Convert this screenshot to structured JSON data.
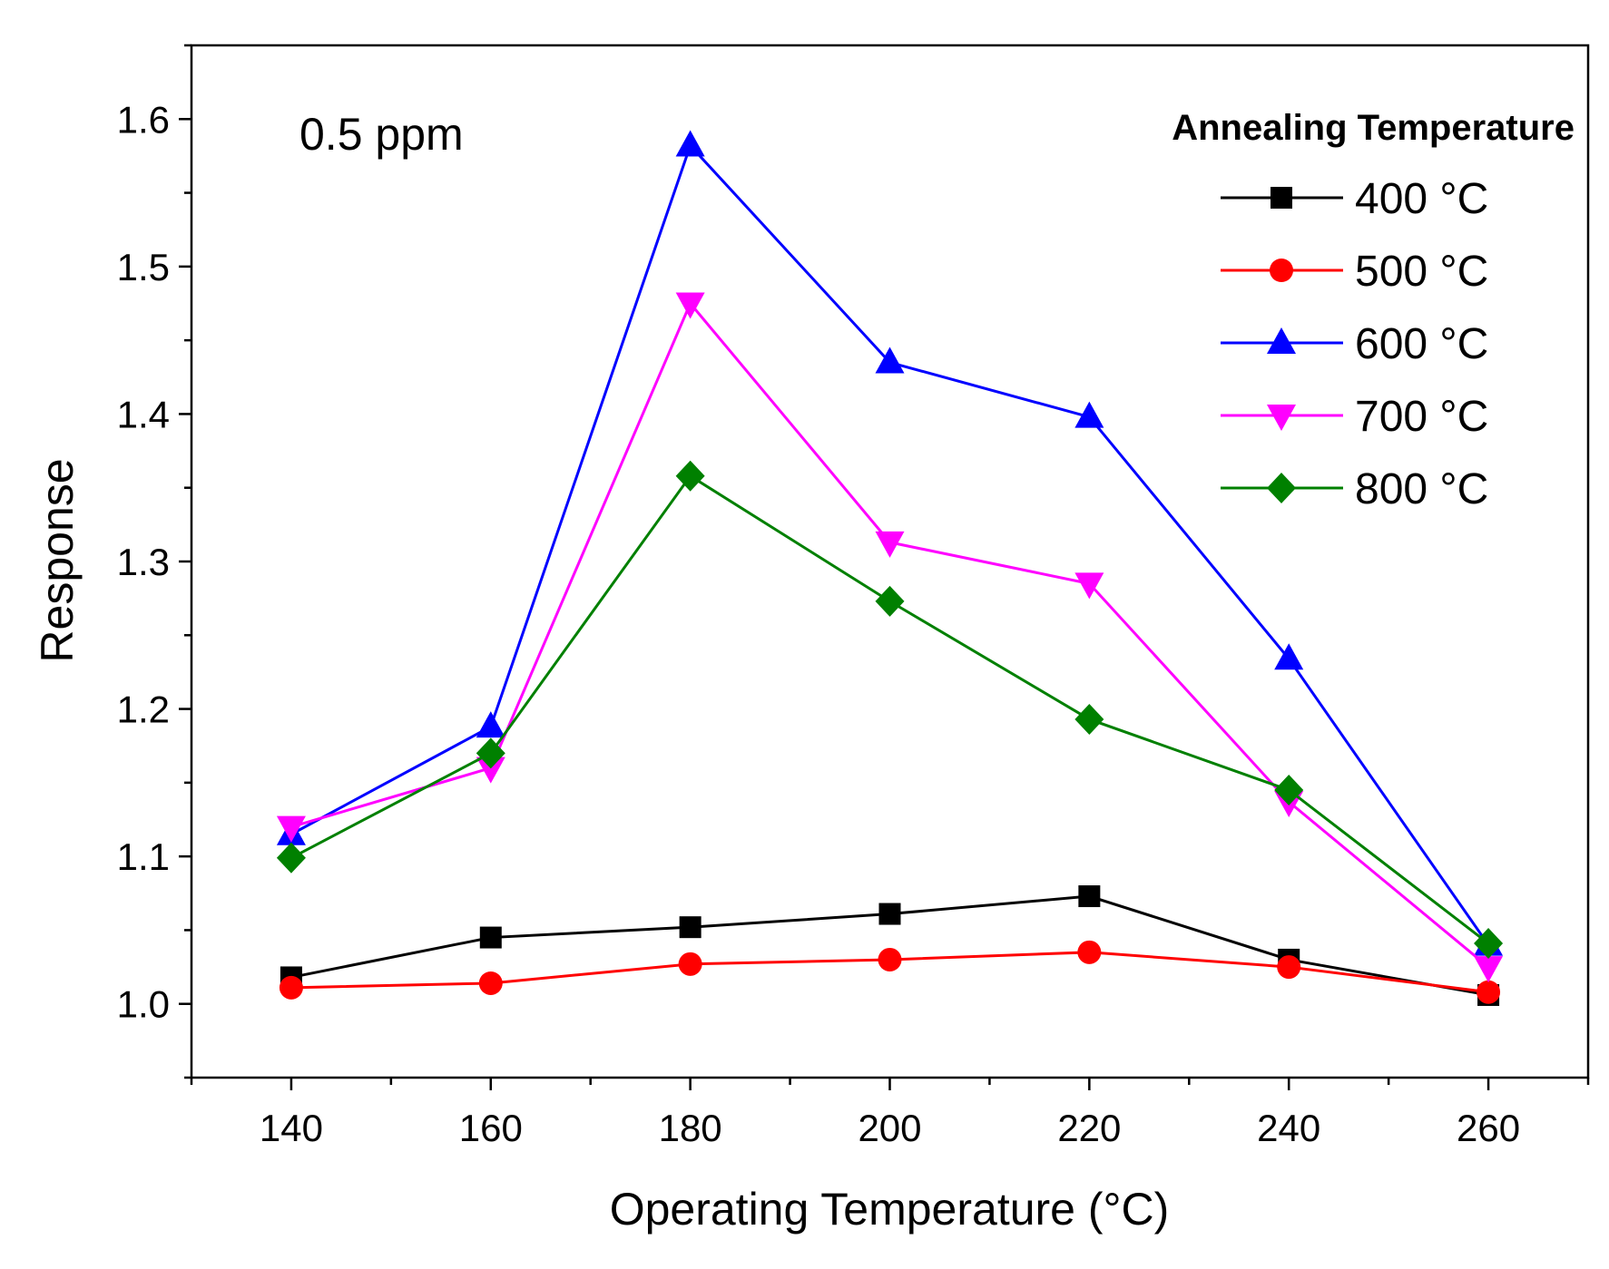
{
  "chart_data": {
    "type": "line",
    "title": "",
    "annotation": "0.5 ppm",
    "xlabel": "Operating Temperature (°C)",
    "ylabel": "Response",
    "xlim": [
      130,
      270
    ],
    "ylim": [
      0.95,
      1.65
    ],
    "x_ticks": [
      140,
      160,
      180,
      200,
      220,
      240,
      260
    ],
    "x_minor_ticks": [
      130,
      150,
      170,
      190,
      210,
      230,
      250,
      270
    ],
    "y_ticks": [
      1.0,
      1.1,
      1.2,
      1.3,
      1.4,
      1.5,
      1.6
    ],
    "x_tick_labels": [
      "140",
      "160",
      "180",
      "200",
      "220",
      "240",
      "260"
    ],
    "y_tick_labels": [
      "1.0",
      "1.1",
      "1.2",
      "1.3",
      "1.4",
      "1.5",
      "1.6"
    ],
    "legend_title": "Annealing Temperature",
    "legend_position": "top-right",
    "grid": false,
    "x": [
      140,
      160,
      180,
      200,
      220,
      240,
      260
    ],
    "series": [
      {
        "name": "400 °C",
        "color": "#000000",
        "marker": "square",
        "values": [
          1.018,
          1.045,
          1.052,
          1.061,
          1.073,
          1.03,
          1.006
        ]
      },
      {
        "name": "500 °C",
        "color": "#ff0000",
        "marker": "circle",
        "values": [
          1.011,
          1.014,
          1.027,
          1.03,
          1.035,
          1.025,
          1.008
        ]
      },
      {
        "name": "600 °C",
        "color": "#0000ff",
        "marker": "triangle-up",
        "values": [
          1.115,
          1.188,
          1.582,
          1.435,
          1.398,
          1.234,
          1.04
        ]
      },
      {
        "name": "700 °C",
        "color": "#ff00ff",
        "marker": "triangle-down",
        "values": [
          1.12,
          1.16,
          1.475,
          1.313,
          1.285,
          1.137,
          1.025
        ]
      },
      {
        "name": "800 °C",
        "color": "#008000",
        "marker": "diamond",
        "values": [
          1.099,
          1.17,
          1.358,
          1.273,
          1.193,
          1.145,
          1.041
        ]
      }
    ]
  }
}
